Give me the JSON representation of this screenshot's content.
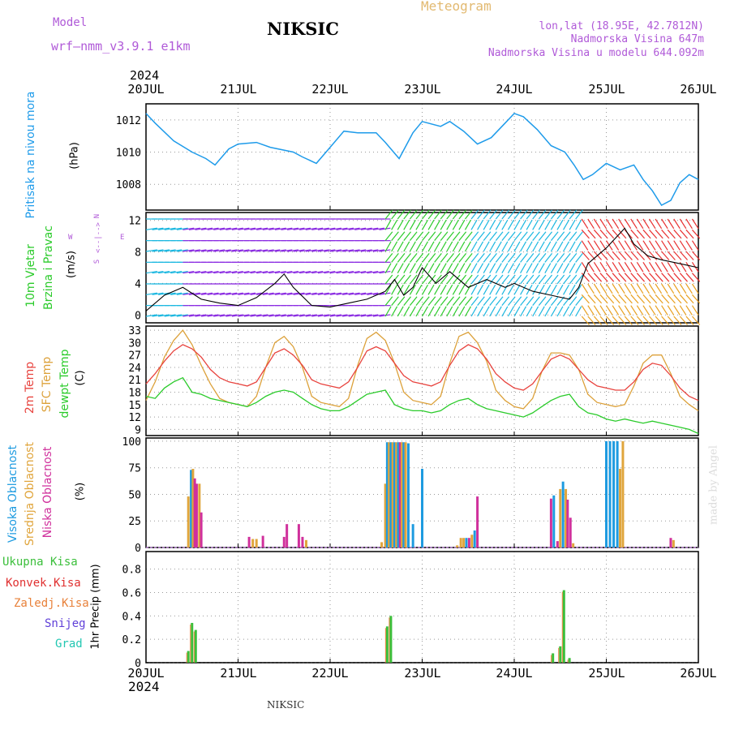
{
  "header": {
    "model_label": "Model",
    "model_name": "wrf–nmm_v3.9.1  e1km",
    "title": "NIKSIC",
    "meteogram": "Meteogram",
    "lonlat": "lon,lat (18.95E, 42.7812N)",
    "altitude": "Nadmorska Visina 647m",
    "model_altitude": "Nadmorska Visina u modelu 644.092m",
    "year_top": "2024",
    "year_bottom": "2024",
    "footer_title": "NIKSIC",
    "credit": "made by Angel"
  },
  "colors": {
    "pressure": "#1e9bea",
    "temp2m": "#e8433e",
    "sfc": "#dca13a",
    "dewpt": "#2bcb2b",
    "high_cloud": "#1e9be0",
    "mid_cloud": "#e0a53c",
    "low_cloud": "#d0309c",
    "total_precip": "#3bbf3b",
    "conv_precip": "#e03030",
    "grid_precip": "#e8813a",
    "snow": "#6040d8",
    "hail": "#22c7b2",
    "purple_text": "#b05ad8",
    "meteogram_text": "#e2b970"
  },
  "x_axis": {
    "tick_labels": [
      "20JUL",
      "21JUL",
      "22JUL",
      "23JUL",
      "24JUL",
      "25JUL",
      "26JUL"
    ]
  },
  "panel_labels": {
    "pressure": "Pritisak na nivou mora",
    "pressure_unit": "(hPa)",
    "wind1": "10m Vjetar",
    "wind2": "Brzina i Pravac",
    "wind_unit": "(m/s)",
    "compass_n": "N",
    "compass_s": "S",
    "compass_w": "W",
    "compass_e": "E",
    "compass_mid": "<--|-->",
    "temp2m": "2m Temp",
    "sfc": "SFC Temp",
    "dewpt": "dewpt Temp",
    "temp_unit": "(C)",
    "high_cloud": "Visoka Oblacnost",
    "mid_cloud": "Srednja Oblacnost",
    "low_cloud": "Niska Oblacnost",
    "cloud_unit": "(%)",
    "precip_total": "Ukupna Kisa",
    "precip_conv": "Konvek.Kisa",
    "precip_grid": "Zaledj.Kisa",
    "precip_snow": "Snijeg",
    "precip_hail": "Grad",
    "precip_axis": "1hr Precip (mm)"
  },
  "chart_data": [
    {
      "type": "line",
      "name": "pressure",
      "ylabel": "Pritisak na nivou mora (hPa)",
      "ylim": [
        1006.4,
        1013.0
      ],
      "yticks": [
        1008,
        1010,
        1012
      ],
      "grid": true,
      "x": [
        0,
        0.1,
        0.3,
        0.5,
        0.65,
        0.75,
        0.9,
        1.0,
        1.2,
        1.35,
        1.6,
        1.7,
        1.85,
        2.0,
        2.15,
        2.3,
        2.5,
        2.6,
        2.75,
        2.9,
        3.0,
        3.2,
        3.3,
        3.45,
        3.6,
        3.75,
        3.9,
        4.0,
        4.1,
        4.25,
        4.4,
        4.55,
        4.65,
        4.75,
        4.85,
        5.0,
        5.15,
        5.3,
        5.4,
        5.5,
        5.6,
        5.7,
        5.8,
        5.9,
        6.0
      ],
      "series": [
        {
          "values": [
            1012.4,
            1011.8,
            1010.7,
            1010.0,
            1009.6,
            1009.2,
            1010.2,
            1010.5,
            1010.6,
            1010.3,
            1010.0,
            1009.7,
            1009.3,
            1010.3,
            1011.3,
            1011.2,
            1011.2,
            1010.6,
            1009.6,
            1011.2,
            1011.9,
            1011.6,
            1011.9,
            1011.3,
            1010.5,
            1010.9,
            1011.8,
            1012.4,
            1012.2,
            1011.4,
            1010.4,
            1010.0,
            1009.2,
            1008.3,
            1008.6,
            1009.3,
            1008.9,
            1009.2,
            1008.3,
            1007.6,
            1006.7,
            1007.0,
            1008.1,
            1008.6,
            1008.3
          ]
        }
      ]
    },
    {
      "type": "line",
      "name": "wind",
      "ylabel": "10m Vjetar Brzina i Pravac (m/s)",
      "ylim": [
        -1,
        13
      ],
      "yticks": [
        0,
        4,
        8,
        12
      ],
      "grid": true,
      "x": [
        0,
        0.2,
        0.4,
        0.6,
        0.8,
        1.0,
        1.2,
        1.4,
        1.5,
        1.6,
        1.8,
        2.0,
        2.2,
        2.4,
        2.6,
        2.7,
        2.8,
        2.9,
        3.0,
        3.15,
        3.3,
        3.5,
        3.7,
        3.9,
        4.0,
        4.2,
        4.4,
        4.6,
        4.7,
        4.8,
        5.0,
        5.2,
        5.3,
        5.45,
        5.6,
        5.8,
        6.0
      ],
      "series": [
        {
          "name": "speed",
          "values": [
            0.5,
            2.5,
            3.5,
            2.0,
            1.5,
            1.2,
            2.2,
            4.0,
            5.2,
            3.5,
            1.2,
            1.0,
            1.5,
            2.0,
            3.0,
            4.5,
            2.5,
            3.5,
            6.0,
            4.0,
            5.5,
            3.5,
            4.5,
            3.5,
            4.0,
            3.0,
            2.5,
            2.0,
            3.5,
            6.5,
            8.5,
            11.0,
            9.0,
            7.5,
            7.0,
            6.5,
            6.0
          ]
        }
      ]
    },
    {
      "type": "line",
      "name": "temperature",
      "ylabel": "2m Temp / SFC Temp / dewpt Temp (C)",
      "ylim": [
        7.5,
        34
      ],
      "yticks": [
        9,
        12,
        15,
        18,
        21,
        24,
        27,
        30,
        33
      ],
      "grid": true,
      "x": [
        0,
        0.1,
        0.2,
        0.3,
        0.4,
        0.5,
        0.6,
        0.7,
        0.8,
        0.9,
        1.0,
        1.1,
        1.2,
        1.3,
        1.4,
        1.5,
        1.6,
        1.7,
        1.8,
        1.9,
        2.0,
        2.1,
        2.2,
        2.3,
        2.4,
        2.5,
        2.6,
        2.7,
        2.8,
        2.9,
        3.0,
        3.1,
        3.2,
        3.3,
        3.4,
        3.5,
        3.6,
        3.7,
        3.8,
        3.9,
        4.0,
        4.1,
        4.2,
        4.3,
        4.4,
        4.5,
        4.6,
        4.7,
        4.8,
        4.9,
        5.0,
        5.1,
        5.2,
        5.3,
        5.4,
        5.5,
        5.6,
        5.7,
        5.8,
        5.9,
        6.0
      ],
      "series": [
        {
          "name": "2m Temp",
          "values": [
            20.0,
            22.5,
            25.5,
            28.0,
            29.5,
            28.5,
            26.5,
            23.5,
            21.5,
            20.5,
            20.0,
            19.5,
            20.5,
            24.0,
            27.5,
            28.5,
            27.0,
            24.5,
            21.0,
            20.0,
            19.5,
            19.0,
            20.5,
            24.0,
            28.0,
            29.0,
            28.0,
            25.0,
            22.0,
            20.5,
            20.0,
            19.5,
            20.5,
            24.5,
            28.0,
            29.5,
            28.5,
            26.0,
            22.5,
            20.5,
            19.0,
            18.5,
            20.0,
            23.0,
            26.0,
            27.0,
            26.0,
            23.5,
            21.0,
            19.5,
            19.0,
            18.5,
            18.5,
            20.5,
            23.5,
            25.0,
            24.5,
            22.0,
            19.0,
            17.0,
            16.0
          ]
        },
        {
          "name": "SFC Temp",
          "values": [
            16.0,
            20.5,
            26.5,
            30.5,
            33.0,
            29.5,
            24.5,
            20.0,
            16.5,
            15.5,
            15.0,
            14.5,
            17.0,
            24.0,
            30.0,
            31.5,
            29.0,
            24.0,
            17.0,
            15.5,
            15.0,
            14.5,
            16.5,
            24.5,
            31.0,
            32.5,
            30.5,
            25.0,
            18.0,
            16.0,
            15.5,
            15.0,
            17.0,
            25.0,
            31.5,
            32.5,
            30.0,
            25.5,
            18.5,
            16.0,
            14.5,
            14.0,
            16.5,
            23.0,
            27.5,
            27.5,
            27.0,
            23.5,
            17.5,
            15.5,
            15.0,
            14.5,
            15.0,
            19.5,
            25.0,
            27.0,
            27.0,
            22.5,
            17.0,
            15.0,
            13.5
          ]
        },
        {
          "name": "dewpt Temp",
          "values": [
            17.0,
            16.5,
            19.0,
            20.5,
            21.5,
            18.0,
            17.5,
            16.5,
            16.0,
            15.5,
            15.0,
            14.5,
            15.5,
            17.0,
            18.0,
            18.5,
            18.0,
            16.5,
            15.0,
            14.0,
            13.5,
            13.5,
            14.5,
            16.0,
            17.5,
            18.0,
            18.5,
            15.0,
            14.0,
            13.5,
            13.5,
            13.0,
            13.5,
            15.0,
            16.0,
            16.5,
            15.0,
            14.0,
            13.5,
            13.0,
            12.5,
            12.0,
            13.0,
            14.5,
            16.0,
            17.0,
            17.5,
            14.5,
            13.0,
            12.5,
            11.5,
            11.0,
            11.5,
            11.0,
            10.5,
            11.0,
            10.5,
            10.0,
            9.5,
            9.0,
            8.0
          ]
        }
      ]
    },
    {
      "type": "bar",
      "name": "cloud_cover",
      "ylabel": "Visoka / Srednja / Niska Oblacnost (%)",
      "ylim": [
        0,
        103
      ],
      "yticks": [
        0,
        25,
        50,
        75,
        100
      ],
      "grid": true,
      "bars": [
        {
          "x": 0.46,
          "series": "mid",
          "value": 48
        },
        {
          "x": 0.49,
          "series": "high",
          "value": 73
        },
        {
          "x": 0.51,
          "series": "mid",
          "value": 74
        },
        {
          "x": 0.53,
          "series": "low",
          "value": 65
        },
        {
          "x": 0.55,
          "series": "low",
          "value": 60
        },
        {
          "x": 0.58,
          "series": "mid",
          "value": 60
        },
        {
          "x": 0.6,
          "series": "low",
          "value": 33
        },
        {
          "x": 1.12,
          "series": "low",
          "value": 10
        },
        {
          "x": 1.16,
          "series": "mid",
          "value": 8
        },
        {
          "x": 1.2,
          "series": "mid",
          "value": 8
        },
        {
          "x": 1.27,
          "series": "low",
          "value": 11
        },
        {
          "x": 1.5,
          "series": "low",
          "value": 10
        },
        {
          "x": 1.53,
          "series": "low",
          "value": 22
        },
        {
          "x": 1.66,
          "series": "low",
          "value": 22
        },
        {
          "x": 1.7,
          "series": "low",
          "value": 10
        },
        {
          "x": 1.74,
          "series": "mid",
          "value": 7
        },
        {
          "x": 2.56,
          "series": "mid",
          "value": 5
        },
        {
          "x": 2.6,
          "series": "mid",
          "value": 60
        },
        {
          "x": 2.62,
          "series": "high",
          "value": 99
        },
        {
          "x": 2.64,
          "series": "mid",
          "value": 99
        },
        {
          "x": 2.66,
          "series": "high",
          "value": 99
        },
        {
          "x": 2.68,
          "series": "mid",
          "value": 99
        },
        {
          "x": 2.7,
          "series": "high",
          "value": 99
        },
        {
          "x": 2.72,
          "series": "mid",
          "value": 99
        },
        {
          "x": 2.74,
          "series": "high",
          "value": 99
        },
        {
          "x": 2.76,
          "series": "low",
          "value": 99
        },
        {
          "x": 2.78,
          "series": "mid",
          "value": 99
        },
        {
          "x": 2.8,
          "series": "high",
          "value": 99
        },
        {
          "x": 2.82,
          "series": "mid",
          "value": 99
        },
        {
          "x": 2.85,
          "series": "high",
          "value": 98
        },
        {
          "x": 2.9,
          "series": "high",
          "value": 22
        },
        {
          "x": 3.0,
          "series": "high",
          "value": 74
        },
        {
          "x": 3.38,
          "series": "mid",
          "value": 2
        },
        {
          "x": 3.42,
          "series": "mid",
          "value": 9
        },
        {
          "x": 3.45,
          "series": "mid",
          "value": 9
        },
        {
          "x": 3.48,
          "series": "high",
          "value": 9
        },
        {
          "x": 3.51,
          "series": "low",
          "value": 9
        },
        {
          "x": 3.54,
          "series": "mid",
          "value": 12
        },
        {
          "x": 3.57,
          "series": "high",
          "value": 16
        },
        {
          "x": 3.6,
          "series": "low",
          "value": 48
        },
        {
          "x": 4.4,
          "series": "low",
          "value": 46
        },
        {
          "x": 4.43,
          "series": "high",
          "value": 49
        },
        {
          "x": 4.47,
          "series": "low",
          "value": 6
        },
        {
          "x": 4.5,
          "series": "mid",
          "value": 55
        },
        {
          "x": 4.53,
          "series": "high",
          "value": 62
        },
        {
          "x": 4.56,
          "series": "mid",
          "value": 55
        },
        {
          "x": 4.58,
          "series": "low",
          "value": 45
        },
        {
          "x": 4.61,
          "series": "low",
          "value": 28
        },
        {
          "x": 4.64,
          "series": "mid",
          "value": 4
        },
        {
          "x": 5.0,
          "series": "high",
          "value": 100
        },
        {
          "x": 5.04,
          "series": "high",
          "value": 100
        },
        {
          "x": 5.08,
          "series": "high",
          "value": 100
        },
        {
          "x": 5.12,
          "series": "high",
          "value": 100
        },
        {
          "x": 5.15,
          "series": "mid",
          "value": 74
        },
        {
          "x": 5.18,
          "series": "mid",
          "value": 100
        },
        {
          "x": 5.7,
          "series": "low",
          "value": 9
        },
        {
          "x": 5.73,
          "series": "mid",
          "value": 7
        }
      ]
    },
    {
      "type": "bar",
      "name": "precipitation",
      "ylabel": "1hr Precip (mm)",
      "ylim": [
        0,
        0.95
      ],
      "yticks": [
        0,
        0.2,
        0.4,
        0.6,
        0.8
      ],
      "grid": true,
      "bars": [
        {
          "x": 0.46,
          "series": "total",
          "value": 0.1
        },
        {
          "x": 0.5,
          "series": "total",
          "value": 0.34
        },
        {
          "x": 0.54,
          "series": "total",
          "value": 0.28
        },
        {
          "x": 2.62,
          "series": "total",
          "value": 0.31
        },
        {
          "x": 2.66,
          "series": "total",
          "value": 0.4
        },
        {
          "x": 4.42,
          "series": "total",
          "value": 0.08
        },
        {
          "x": 4.5,
          "series": "total",
          "value": 0.14
        },
        {
          "x": 4.54,
          "series": "total",
          "value": 0.62
        },
        {
          "x": 4.6,
          "series": "total",
          "value": 0.04
        }
      ]
    }
  ]
}
